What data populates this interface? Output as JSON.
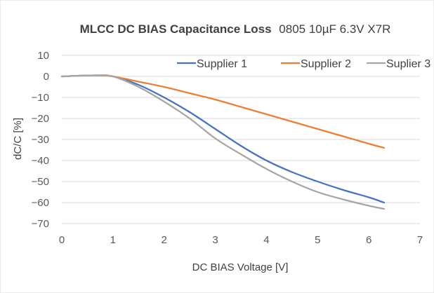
{
  "chart_data": {
    "type": "line",
    "title_bold": "MLCC DC BIAS Capacitance  Loss",
    "title_rest": "0805 10µF 6.3V X7R",
    "xlabel": "DC BIAS Voltage [V]",
    "ylabel": "dC/C [%]",
    "xlim": [
      0,
      7
    ],
    "ylim": [
      -70,
      10
    ],
    "x_ticks": [
      "0",
      "1",
      "2",
      "3",
      "4",
      "5",
      "6",
      "7"
    ],
    "y_ticks": [
      "10",
      "0",
      "-10",
      "-20",
      "-30",
      "-40",
      "-50",
      "-60",
      "-70"
    ],
    "grid": "horizontal",
    "legend_position": "top",
    "series": [
      {
        "name": "Supplier 1",
        "color": "#4472c4",
        "x": [
          0,
          0.3,
          0.7,
          1.0,
          1.5,
          2.0,
          2.5,
          3.0,
          3.5,
          4.0,
          4.5,
          5.0,
          5.5,
          6.0,
          6.3
        ],
        "y": [
          0,
          0.3,
          0.5,
          0,
          -4,
          -10,
          -17,
          -25,
          -33,
          -40,
          -45.5,
          -50,
          -54,
          -57.5,
          -60
        ]
      },
      {
        "name": "Supplier 2",
        "color": "#ed7d31",
        "x": [
          0,
          0.3,
          0.7,
          1.0,
          1.5,
          2.0,
          2.5,
          3.0,
          3.5,
          4.0,
          4.5,
          5.0,
          5.5,
          6.0,
          6.3
        ],
        "y": [
          0,
          0.3,
          0.5,
          0,
          -2.5,
          -5,
          -8,
          -11,
          -14.5,
          -18,
          -21.5,
          -25,
          -28.5,
          -32,
          -34
        ]
      },
      {
        "name": "Suplier 3",
        "color": "#a5a5a5",
        "x": [
          0,
          0.3,
          0.7,
          1.0,
          1.5,
          2.0,
          2.5,
          3.0,
          3.5,
          4.0,
          4.5,
          5.0,
          5.5,
          6.0,
          6.3
        ],
        "y": [
          0,
          0.3,
          0.5,
          0,
          -5,
          -12,
          -20,
          -29.5,
          -37,
          -44,
          -50,
          -55,
          -58.5,
          -61.5,
          -63
        ]
      }
    ],
    "axis_color": "#d9d9d9",
    "grid_color": "#d9d9d9"
  }
}
